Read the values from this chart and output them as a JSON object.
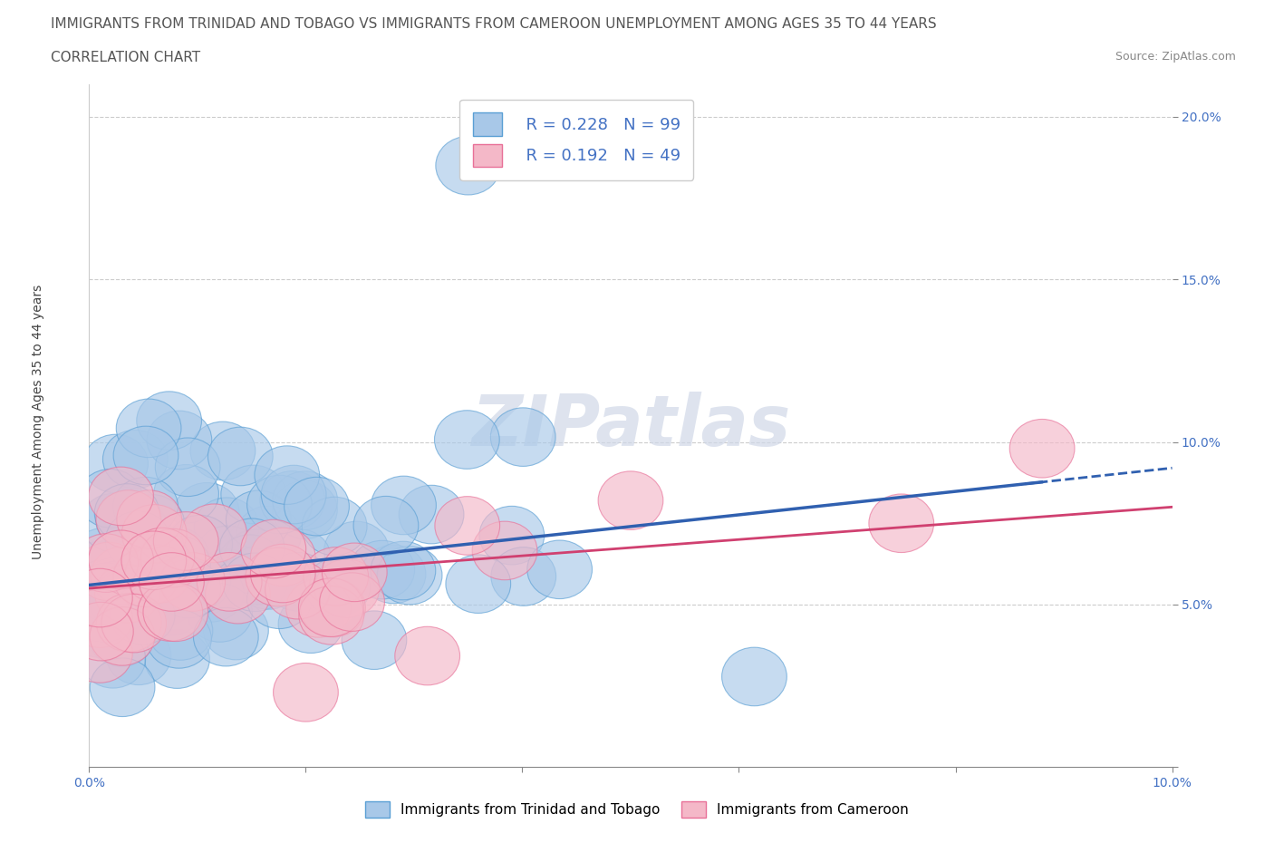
{
  "title_line1": "IMMIGRANTS FROM TRINIDAD AND TOBAGO VS IMMIGRANTS FROM CAMEROON UNEMPLOYMENT AMONG AGES 35 TO 44 YEARS",
  "title_line2": "CORRELATION CHART",
  "source": "Source: ZipAtlas.com",
  "ylabel": "Unemployment Among Ages 35 to 44 years",
  "xlim": [
    0.0,
    0.1
  ],
  "ylim": [
    0.0,
    0.21
  ],
  "xticks": [
    0.0,
    0.02,
    0.04,
    0.06,
    0.08,
    0.1
  ],
  "yticks": [
    0.0,
    0.05,
    0.1,
    0.15,
    0.2
  ],
  "blue_color": "#a8c8e8",
  "blue_edge_color": "#5a9fd4",
  "pink_color": "#f4b8c8",
  "pink_edge_color": "#e87098",
  "blue_line_color": "#3060b0",
  "pink_line_color": "#d04070",
  "watermark": "ZIPatlas",
  "legend_r1": "R = 0.228",
  "legend_n1": "N = 99",
  "legend_r2": "R = 0.192",
  "legend_n2": "N = 49",
  "blue_label": "Immigrants from Trinidad and Tobago",
  "pink_label": "Immigrants from Cameroon",
  "blue_R": 0.228,
  "pink_R": 0.192,
  "blue_N": 99,
  "pink_N": 49,
  "title_fontsize": 11,
  "axis_label_fontsize": 10,
  "tick_fontsize": 10,
  "background_color": "#ffffff",
  "grid_color": "#cccccc"
}
